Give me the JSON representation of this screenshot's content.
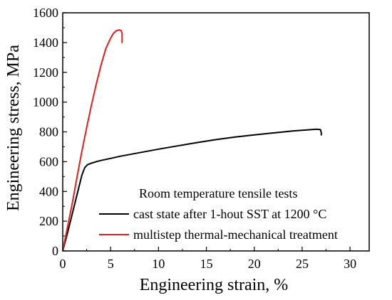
{
  "chart_data": {
    "type": "line",
    "title": "",
    "xlabel": "Engineering strain, %",
    "ylabel": "Engineering stress, MPa",
    "xlim": [
      0,
      32
    ],
    "ylim": [
      0,
      1600
    ],
    "x_ticks": [
      0,
      5,
      10,
      15,
      20,
      25,
      30
    ],
    "y_ticks": [
      0,
      200,
      400,
      600,
      800,
      1000,
      1200,
      1400,
      1600
    ],
    "grid": false,
    "legend": {
      "title": "Room temperature tensile tests",
      "placement": "bottom-right"
    },
    "series": [
      {
        "name": "cast state after 1-hout SST at 1200 °C",
        "color": "#000000",
        "x": [
          0,
          0.5,
          1.0,
          1.5,
          2.0,
          2.3,
          2.6,
          3.0,
          3.5,
          4.0,
          5.0,
          6.0,
          8.0,
          10.0,
          12.0,
          14.0,
          16.0,
          18.0,
          20.0,
          22.0,
          24.0,
          25.0,
          26.0,
          26.5,
          26.9,
          27.0,
          27.0
        ],
        "y": [
          0,
          120,
          250,
          380,
          510,
          560,
          580,
          590,
          600,
          608,
          622,
          636,
          660,
          684,
          706,
          728,
          748,
          765,
          780,
          793,
          806,
          811,
          816,
          818,
          816,
          795,
          780
        ]
      },
      {
        "name": "multistep thermal-mechanical treatment",
        "color": "#e02020",
        "x": [
          0,
          0.5,
          1.0,
          1.5,
          2.0,
          2.5,
          3.0,
          3.5,
          4.0,
          4.5,
          5.0,
          5.3,
          5.6,
          5.9,
          6.1,
          6.2,
          6.2
        ],
        "y": [
          0,
          160,
          320,
          500,
          670,
          830,
          980,
          1120,
          1250,
          1360,
          1430,
          1462,
          1480,
          1485,
          1480,
          1460,
          1400
        ]
      }
    ]
  }
}
